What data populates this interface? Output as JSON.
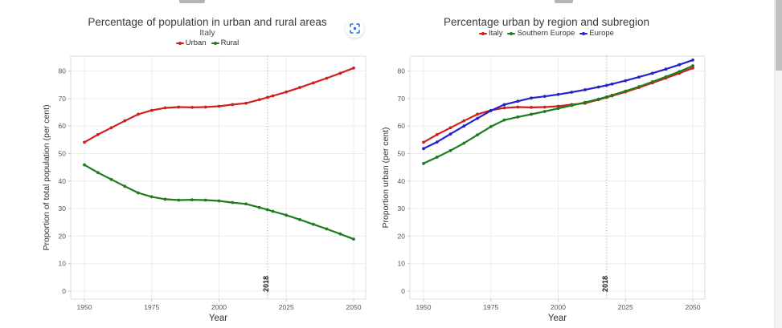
{
  "controls": {
    "scan_button": {
      "icon": "scan-focus-icon",
      "color": "#2e6fd8"
    }
  },
  "chart_data": [
    {
      "type": "line",
      "title": "Percentage of population in urban and rural areas",
      "subtitle": "Italy",
      "xlabel": "Year",
      "ylabel": "Proportion of total population (per cent)",
      "x": [
        1950,
        1955,
        1960,
        1965,
        1970,
        1975,
        1980,
        1985,
        1990,
        1995,
        2000,
        2005,
        2010,
        2015,
        2018,
        2020,
        2025,
        2030,
        2035,
        2040,
        2045,
        2050
      ],
      "series": [
        {
          "name": "Urban",
          "color": "#cf2020",
          "values": [
            54.1,
            56.9,
            59.4,
            61.9,
            64.3,
            65.7,
            66.6,
            66.9,
            66.8,
            66.9,
            67.2,
            67.8,
            68.3,
            69.6,
            70.4,
            71.0,
            72.4,
            74.0,
            75.7,
            77.4,
            79.2,
            81.1
          ]
        },
        {
          "name": "Rural",
          "color": "#1e7b1e",
          "values": [
            45.9,
            43.1,
            40.6,
            38.1,
            35.7,
            34.3,
            33.4,
            33.1,
            33.2,
            33.1,
            32.8,
            32.2,
            31.7,
            30.4,
            29.6,
            29.0,
            27.6,
            26.0,
            24.3,
            22.6,
            20.8,
            18.9
          ]
        }
      ],
      "xticks": [
        1950,
        1975,
        2000,
        2025,
        2050
      ],
      "yticks": [
        0,
        10,
        20,
        30,
        40,
        50,
        60,
        70,
        80
      ],
      "xlim": [
        1945,
        2055
      ],
      "ylim": [
        0,
        85
      ],
      "grid": true,
      "legend_position": "top",
      "vline": {
        "x": 2018,
        "label": "2018"
      }
    },
    {
      "type": "line",
      "title": "Percentage urban by region and subregion",
      "subtitle": "",
      "xlabel": "Year",
      "ylabel": "Proportion urban (per cent)",
      "x": [
        1950,
        1955,
        1960,
        1965,
        1970,
        1975,
        1980,
        1985,
        1990,
        1995,
        2000,
        2005,
        2010,
        2015,
        2018,
        2020,
        2025,
        2030,
        2035,
        2040,
        2045,
        2050
      ],
      "series": [
        {
          "name": "Italy",
          "color": "#cf2020",
          "values": [
            54.1,
            56.9,
            59.4,
            61.9,
            64.3,
            65.7,
            66.6,
            66.9,
            66.8,
            66.9,
            67.2,
            67.8,
            68.3,
            69.6,
            70.4,
            71.0,
            72.4,
            74.0,
            75.7,
            77.4,
            79.2,
            81.1
          ]
        },
        {
          "name": "Southern Europe",
          "color": "#1e7b1e",
          "values": [
            46.4,
            48.7,
            51.1,
            53.8,
            56.8,
            59.8,
            62.2,
            63.3,
            64.3,
            65.3,
            66.4,
            67.5,
            68.6,
            69.8,
            70.6,
            71.2,
            72.7,
            74.3,
            76.1,
            77.9,
            79.8,
            81.9
          ]
        },
        {
          "name": "Europe",
          "color": "#2323cd",
          "values": [
            51.8,
            54.2,
            57.1,
            60.0,
            62.8,
            65.6,
            67.8,
            69.0,
            70.2,
            70.8,
            71.5,
            72.3,
            73.2,
            74.2,
            74.8,
            75.3,
            76.5,
            77.8,
            79.2,
            80.7,
            82.3,
            84.0
          ]
        }
      ],
      "xticks": [
        1950,
        1975,
        2000,
        2025,
        2050
      ],
      "yticks": [
        0,
        10,
        20,
        30,
        40,
        50,
        60,
        70,
        80
      ],
      "xlim": [
        1945,
        2055
      ],
      "ylim": [
        0,
        85
      ],
      "grid": true,
      "legend_position": "top",
      "vline": {
        "x": 2018,
        "label": "2018"
      }
    }
  ]
}
